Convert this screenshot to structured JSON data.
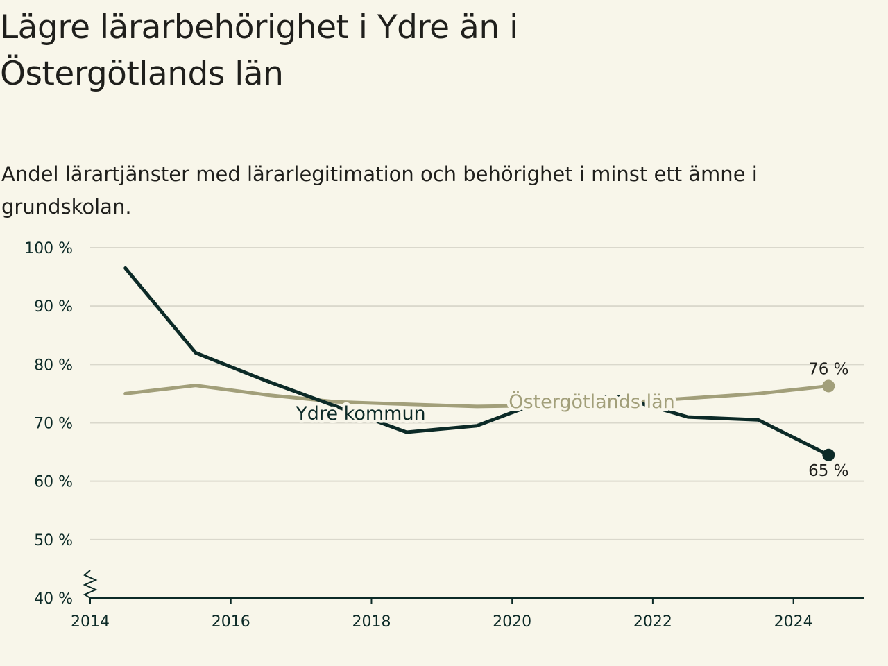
{
  "header": {
    "title": "Lägre lärarbehörighet i Ydre än i Östergötlands län",
    "subtitle": "Andel lärartjänster med lärarlegitimation och behörighet i minst ett ämne i grundskolan."
  },
  "colors": {
    "background": "#f8f6ea",
    "ydre": "#0c2a27",
    "lan": "#a29f7a",
    "grid": "#dad8cc",
    "axis": "#0c2a27"
  },
  "chart_data": {
    "type": "line",
    "title": "Lägre lärarbehörighet i Ydre än i Östergötlands län",
    "subtitle": "Andel lärartjänster med lärarlegitimation och behörighet i minst ett ämne i grundskolan.",
    "xlabel": "",
    "ylabel": "",
    "x": [
      2014.5,
      2015.5,
      2016.5,
      2017.5,
      2018.5,
      2019.5,
      2020.5,
      2021.5,
      2022.5,
      2023.5,
      2024.5
    ],
    "xlim": [
      2014,
      2025
    ],
    "ylim": [
      40,
      100
    ],
    "y_axis_break": true,
    "x_ticks": [
      "2014",
      "2016",
      "2018",
      "2020",
      "2022",
      "2024"
    ],
    "y_ticks": [
      "40 %",
      "50 %",
      "60 %",
      "70 %",
      "80 %",
      "90 %",
      "100 %"
    ],
    "grid": true,
    "series": [
      {
        "name": "Ydre kommun",
        "values": [
          96.5,
          82.0,
          77.2,
          72.8,
          68.4,
          69.5,
          74.0,
          74.5,
          71.0,
          70.5,
          64.5
        ],
        "end_label": "65 %"
      },
      {
        "name": "Östergötlands län",
        "values": [
          75.0,
          76.4,
          74.8,
          73.6,
          73.2,
          72.8,
          73.0,
          73.4,
          74.2,
          75.0,
          76.3
        ],
        "end_label": "76 %"
      }
    ]
  }
}
